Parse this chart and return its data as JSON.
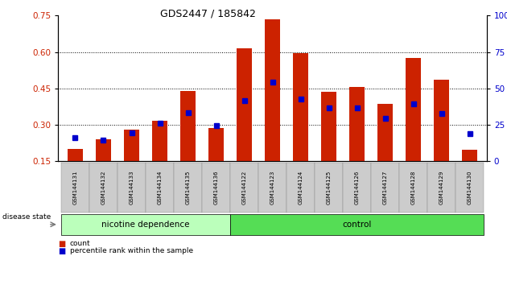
{
  "title": "GDS2447 / 185842",
  "categories": [
    "GSM144131",
    "GSM144132",
    "GSM144133",
    "GSM144134",
    "GSM144135",
    "GSM144136",
    "GSM144122",
    "GSM144123",
    "GSM144124",
    "GSM144125",
    "GSM144126",
    "GSM144127",
    "GSM144128",
    "GSM144129",
    "GSM144130"
  ],
  "red_values": [
    0.2,
    0.24,
    0.28,
    0.315,
    0.44,
    0.285,
    0.615,
    0.735,
    0.595,
    0.435,
    0.455,
    0.385,
    0.575,
    0.485,
    0.195
  ],
  "blue_values": [
    0.245,
    0.235,
    0.265,
    0.305,
    0.35,
    0.295,
    0.4,
    0.475,
    0.405,
    0.37,
    0.37,
    0.325,
    0.385,
    0.345,
    0.262
  ],
  "ylim_left": [
    0.15,
    0.75
  ],
  "ylim_right": [
    0,
    100
  ],
  "yticks_left": [
    0.15,
    0.3,
    0.45,
    0.6,
    0.75
  ],
  "yticks_right": [
    0,
    25,
    50,
    75,
    100
  ],
  "grid_values": [
    0.3,
    0.45,
    0.6
  ],
  "nicotine_count": 6,
  "control_count": 9,
  "nicotine_label": "nicotine dependence",
  "control_label": "control",
  "disease_state_label": "disease state",
  "legend_count": "count",
  "legend_percentile": "percentile rank within the sample",
  "bar_color": "#cc2200",
  "marker_color": "#0000cc",
  "nicotine_bg": "#bbffbb",
  "control_bg": "#55dd55",
  "tick_label_bg": "#cccccc",
  "bar_width": 0.55,
  "marker_size": 4
}
